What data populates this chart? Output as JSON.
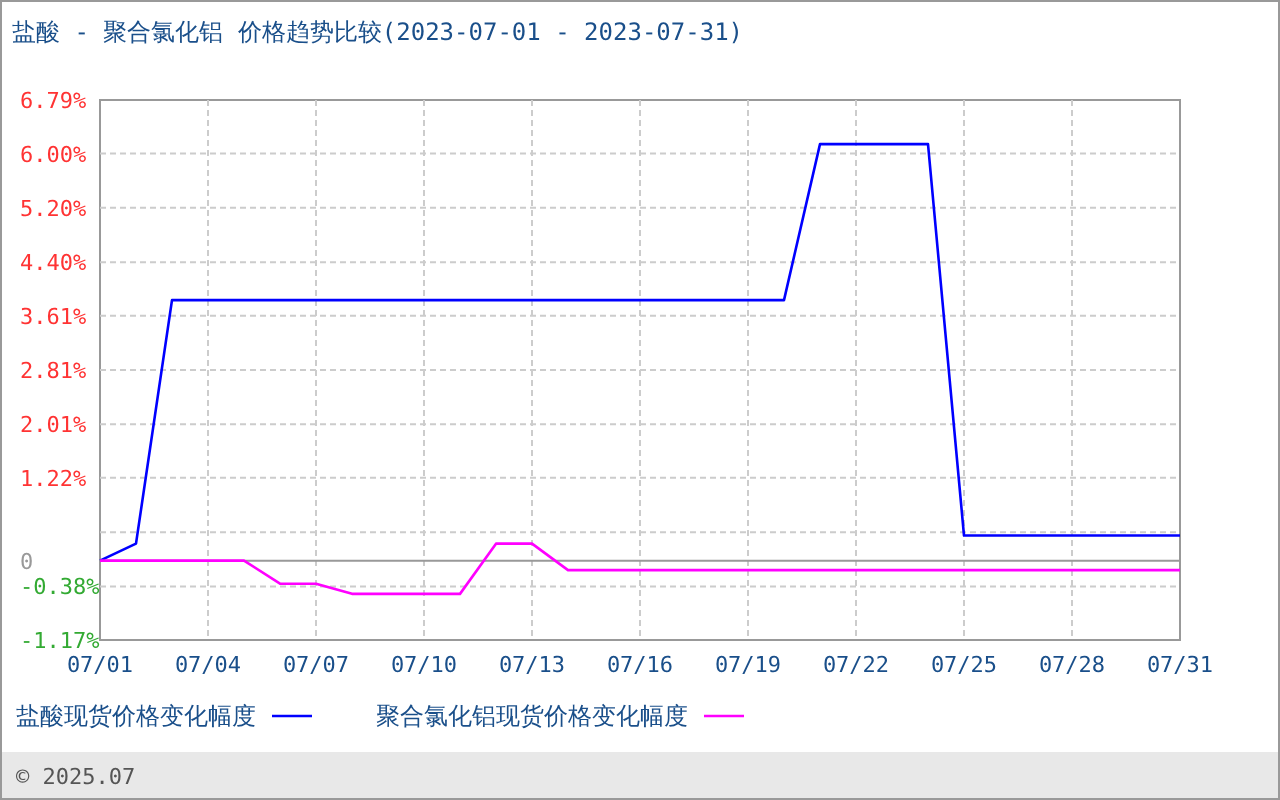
{
  "chart_data": {
    "type": "line",
    "title": "盐酸 - 聚合氯化铝 价格趋势比较(2023-07-01 - 2023-07-31)",
    "x": [
      "2023-07-01",
      "2023-07-02",
      "2023-07-03",
      "2023-07-04",
      "2023-07-05",
      "2023-07-06",
      "2023-07-07",
      "2023-07-08",
      "2023-07-09",
      "2023-07-10",
      "2023-07-11",
      "2023-07-12",
      "2023-07-13",
      "2023-07-14",
      "2023-07-15",
      "2023-07-16",
      "2023-07-17",
      "2023-07-18",
      "2023-07-19",
      "2023-07-20",
      "2023-07-21",
      "2023-07-22",
      "2023-07-23",
      "2023-07-24",
      "2023-07-25",
      "2023-07-26",
      "2023-07-27",
      "2023-07-28",
      "2023-07-29",
      "2023-07-30",
      "2023-07-31"
    ],
    "series": [
      {
        "name": "盐酸现货价格变化幅度",
        "color": "#0000ff",
        "values": [
          0.0,
          0.25,
          3.84,
          3.84,
          3.84,
          3.84,
          3.84,
          3.84,
          3.84,
          3.84,
          3.84,
          3.84,
          3.84,
          3.84,
          3.84,
          3.84,
          3.84,
          3.84,
          3.84,
          3.84,
          6.14,
          6.14,
          6.14,
          6.14,
          0.37,
          0.37,
          0.37,
          0.37,
          0.37,
          0.37,
          0.37
        ]
      },
      {
        "name": "聚合氯化铝现货价格变化幅度",
        "color": "#ff00ff",
        "values": [
          0.0,
          0.0,
          0.0,
          0.0,
          0.0,
          -0.34,
          -0.34,
          -0.49,
          -0.49,
          -0.49,
          -0.49,
          0.25,
          0.25,
          -0.14,
          -0.14,
          -0.14,
          -0.14,
          -0.14,
          -0.14,
          -0.14,
          -0.14,
          -0.14,
          -0.14,
          -0.14,
          -0.14,
          -0.14,
          -0.14,
          -0.14,
          -0.14,
          -0.14,
          -0.14
        ]
      }
    ],
    "xlim": [
      "2023-07-01",
      "2023-07-31"
    ],
    "xticks": [
      {
        "value": "2023-07-01",
        "label": "07/01"
      },
      {
        "value": "2023-07-04",
        "label": "07/04"
      },
      {
        "value": "2023-07-07",
        "label": "07/07"
      },
      {
        "value": "2023-07-10",
        "label": "07/10"
      },
      {
        "value": "2023-07-13",
        "label": "07/13"
      },
      {
        "value": "2023-07-16",
        "label": "07/16"
      },
      {
        "value": "2023-07-19",
        "label": "07/19"
      },
      {
        "value": "2023-07-22",
        "label": "07/22"
      },
      {
        "value": "2023-07-25",
        "label": "07/25"
      },
      {
        "value": "2023-07-28",
        "label": "07/28"
      },
      {
        "value": "2023-07-31",
        "label": "07/31"
      }
    ],
    "ylim": [
      -1.17,
      6.79
    ],
    "yticks": [
      {
        "value": -1.17,
        "label": "-1.17%"
      },
      {
        "value": -0.38,
        "label": "-0.38%"
      },
      {
        "value": 0,
        "label": "0"
      },
      {
        "value": 0.42,
        "label": null
      },
      {
        "value": 1.22,
        "label": "1.22%"
      },
      {
        "value": 2.01,
        "label": "2.01%"
      },
      {
        "value": 2.81,
        "label": "2.81%"
      },
      {
        "value": 3.61,
        "label": "3.61%"
      },
      {
        "value": 4.4,
        "label": "4.40%"
      },
      {
        "value": 5.2,
        "label": "5.20%"
      },
      {
        "value": 6.0,
        "label": "6.00%"
      },
      {
        "value": 6.79,
        "label": "6.79%"
      }
    ],
    "ref_lines": [
      {
        "axis": "y",
        "value": 0,
        "color": "#999999",
        "line_style": "solid"
      }
    ],
    "grid": true,
    "legend": "bottom",
    "marker": "none",
    "line_style": "solid",
    "annotations": [
      "© 2025.07"
    ]
  }
}
